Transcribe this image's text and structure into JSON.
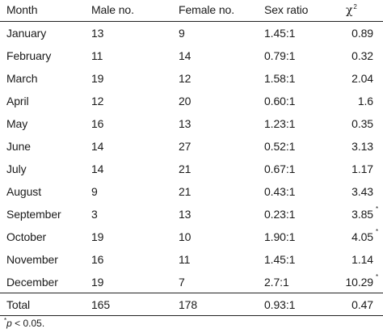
{
  "headers": {
    "month": "Month",
    "male": "Male no.",
    "female": "Female no.",
    "ratio": "Sex ratio",
    "chi": "χ",
    "chi_sup": "2"
  },
  "rows": [
    {
      "month": "January",
      "male": "13",
      "female": "9",
      "ratio": "1.45:1",
      "chi": "0.89",
      "mark": ""
    },
    {
      "month": "February",
      "male": "11",
      "female": "14",
      "ratio": "0.79:1",
      "chi": "0.32",
      "mark": ""
    },
    {
      "month": "March",
      "male": "19",
      "female": "12",
      "ratio": "1.58:1",
      "chi": "2.04",
      "mark": ""
    },
    {
      "month": "April",
      "male": "12",
      "female": "20",
      "ratio": "0.60:1",
      "chi": "1.6",
      "mark": ""
    },
    {
      "month": "May",
      "male": "16",
      "female": "13",
      "ratio": "1.23:1",
      "chi": "0.35",
      "mark": ""
    },
    {
      "month": "June",
      "male": "14",
      "female": "27",
      "ratio": "0.52:1",
      "chi": "3.13",
      "mark": ""
    },
    {
      "month": "July",
      "male": "14",
      "female": "21",
      "ratio": "0.67:1",
      "chi": "1.17",
      "mark": ""
    },
    {
      "month": "August",
      "male": "9",
      "female": "21",
      "ratio": "0.43:1",
      "chi": "3.43",
      "mark": ""
    },
    {
      "month": "September",
      "male": "3",
      "female": "13",
      "ratio": "0.23:1",
      "chi": "3.85",
      "mark": "*"
    },
    {
      "month": "October",
      "male": "19",
      "female": "10",
      "ratio": "1.90:1",
      "chi": "4.05",
      "mark": "*"
    },
    {
      "month": "November",
      "male": "16",
      "female": "11",
      "ratio": "1.45:1",
      "chi": "1.14",
      "mark": ""
    },
    {
      "month": "December",
      "male": "19",
      "female": "7",
      "ratio": "2.7:1",
      "chi": "10.29",
      "mark": "*"
    }
  ],
  "total": {
    "month": "Total",
    "male": "165",
    "female": "178",
    "ratio": "0.93:1",
    "chi": "0.47"
  },
  "footnote": {
    "mark": "*",
    "var": "p",
    "rest": " < 0.05."
  }
}
